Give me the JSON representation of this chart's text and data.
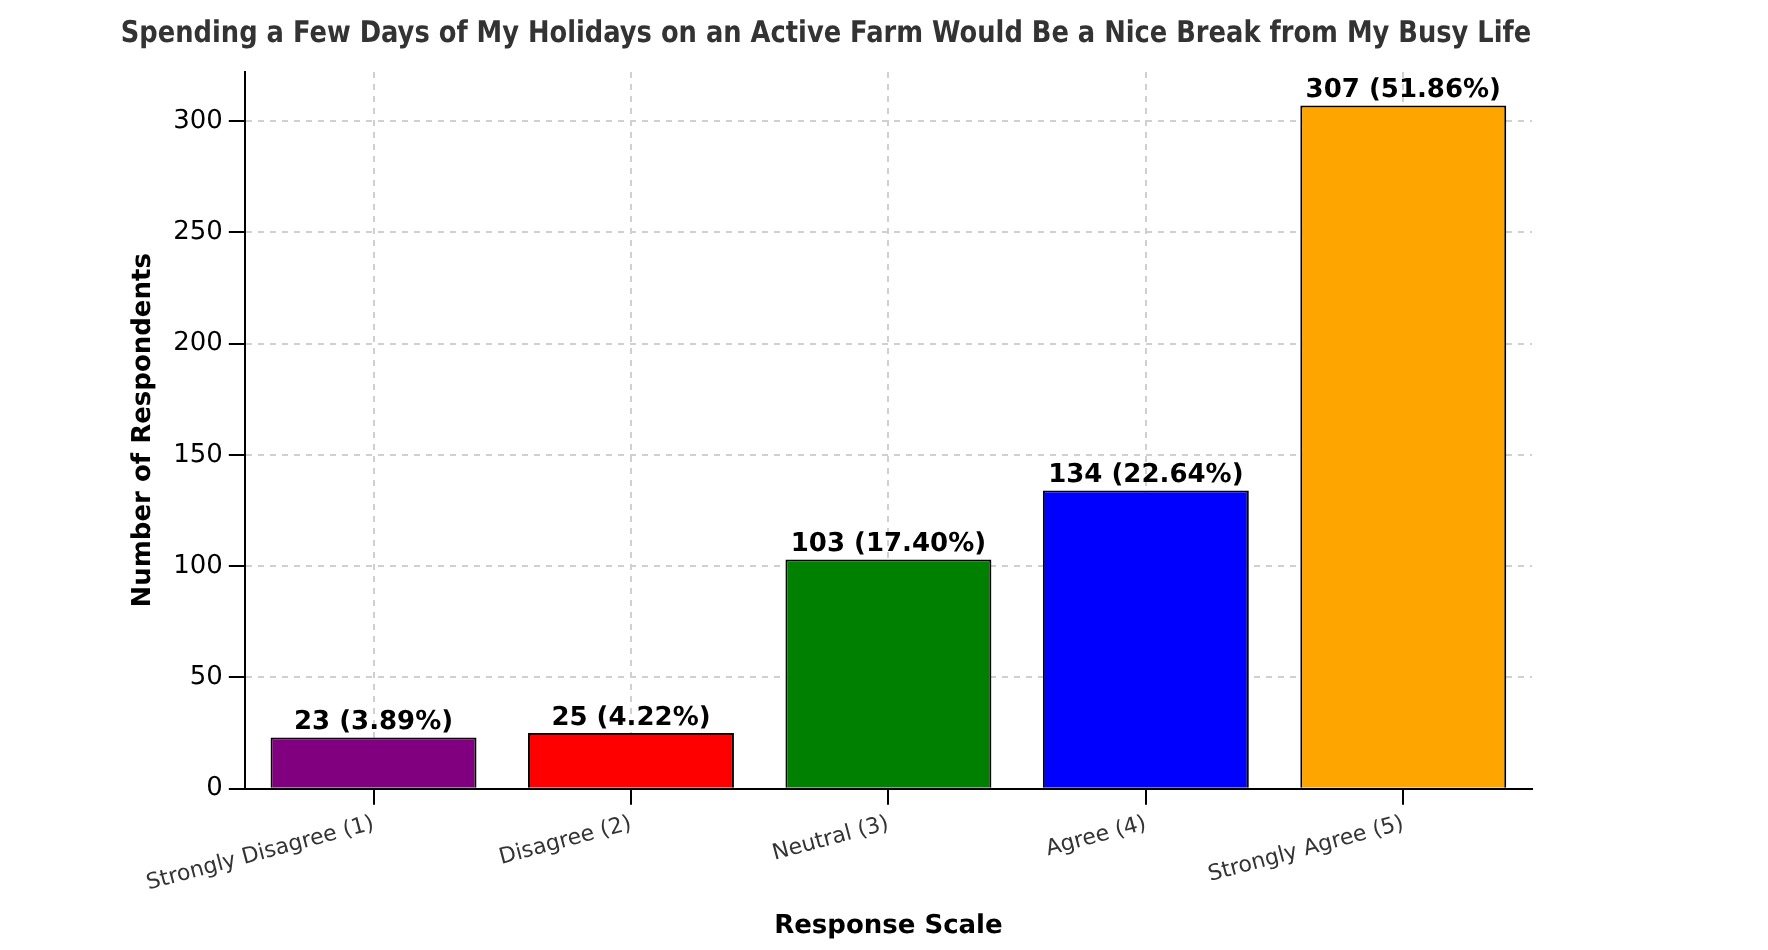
{
  "chart_data": {
    "type": "bar",
    "title": "Spending a Few Days of My Holidays on an Active Farm Would Be a Nice Break from My Busy Life",
    "xlabel": "Response Scale",
    "ylabel": "Number of Respondents",
    "categories": [
      "Strongly Disagree (1)",
      "Disagree (2)",
      "Neutral (3)",
      "Agree (4)",
      "Strongly Agree (5)"
    ],
    "values": [
      23,
      25,
      103,
      134,
      307
    ],
    "colors": [
      "#800080",
      "#ff0000",
      "#008000",
      "#0000ff",
      "#ffa500"
    ],
    "value_labels": [
      "23 (3.89%)",
      "25 (4.22%)",
      "103 (17.40%)",
      "134 (22.64%)",
      "307 (51.86%)"
    ],
    "ylim": [
      0,
      322
    ],
    "yticks": [
      0,
      50,
      100,
      150,
      200,
      250,
      300
    ],
    "grid": true,
    "legend": false
  }
}
